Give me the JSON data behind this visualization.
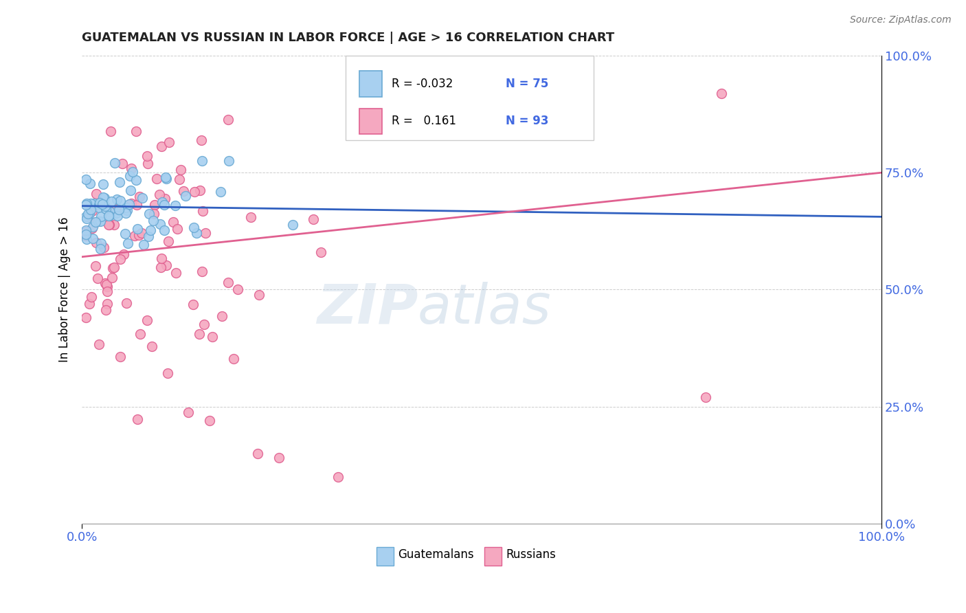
{
  "title": "GUATEMALAN VS RUSSIAN IN LABOR FORCE | AGE > 16 CORRELATION CHART",
  "source_text": "Source: ZipAtlas.com",
  "ylabel": "In Labor Force | Age > 16",
  "watermark": "ZIPatlas",
  "color_guatemalan": "#a8d0f0",
  "color_guatemalan_edge": "#6aaad4",
  "color_russian": "#f5a8c0",
  "color_russian_edge": "#e06090",
  "color_trend_guatemalan": "#3060c0",
  "color_trend_russian": "#e06090",
  "r_guatemalan": -0.032,
  "n_guatemalan": 75,
  "r_russian": 0.161,
  "n_russian": 93,
  "guat_seed": 42,
  "russ_seed": 99
}
